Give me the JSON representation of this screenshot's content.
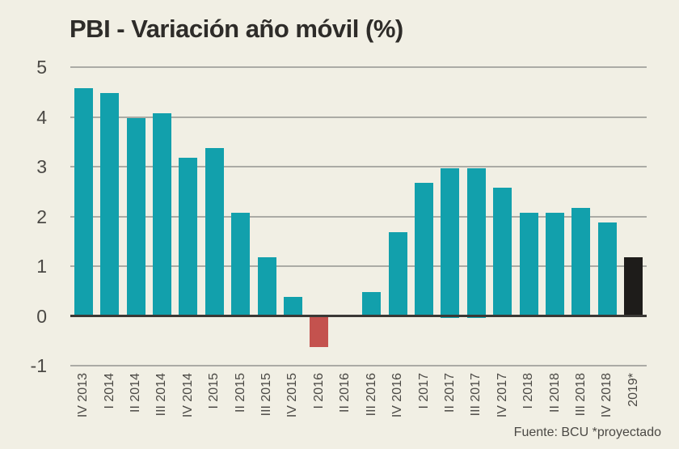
{
  "title": "PBI - Variación año móvil (%)",
  "source_note": "Fuente: BCU *proyectado",
  "colors": {
    "background": "#F1EFE4",
    "bar_teal": "#12A0AC",
    "bar_red": "#C4524E",
    "bar_black": "#1E1C1A",
    "gridline": "#ABABA5",
    "zero_line": "#3A3835",
    "title_text": "#2E2C29",
    "axis_text": "#4B4945"
  },
  "chart_data": {
    "type": "bar",
    "title": "PBI - Variación año móvil (%)",
    "categories": [
      "IV 2013",
      "I 2014",
      "II 2014",
      "III 2014",
      "IV 2014",
      "I 2015",
      "II 2015",
      "III 2015",
      "IV 2015",
      "I 2016",
      "II 2016",
      "III 2016",
      "IV 2016",
      "I 2017",
      "II 2017",
      "III 2017",
      "IV 2017",
      "I 2018",
      "II 2018",
      "III 2018",
      "IV 2018",
      "2019*"
    ],
    "values": [
      4.6,
      4.5,
      4.0,
      4.1,
      3.2,
      3.4,
      2.1,
      1.2,
      0.4,
      -0.6,
      0.0,
      0.5,
      1.7,
      2.7,
      3.0,
      3.0,
      2.6,
      2.1,
      2.1,
      2.2,
      1.9,
      1.2
    ],
    "bar_colors": [
      "teal",
      "teal",
      "teal",
      "teal",
      "teal",
      "teal",
      "teal",
      "teal",
      "teal",
      "red",
      "teal",
      "teal",
      "teal",
      "teal",
      "teal",
      "teal",
      "teal",
      "teal",
      "teal",
      "teal",
      "teal",
      "black"
    ],
    "xlabel": "",
    "ylabel": "",
    "ylim": [
      -1,
      5
    ],
    "yticks": [
      5,
      4,
      3,
      2,
      1,
      0,
      -1
    ],
    "grid": "horizontal",
    "legend": "none",
    "footnote": "Fuente: BCU *proyectado"
  }
}
